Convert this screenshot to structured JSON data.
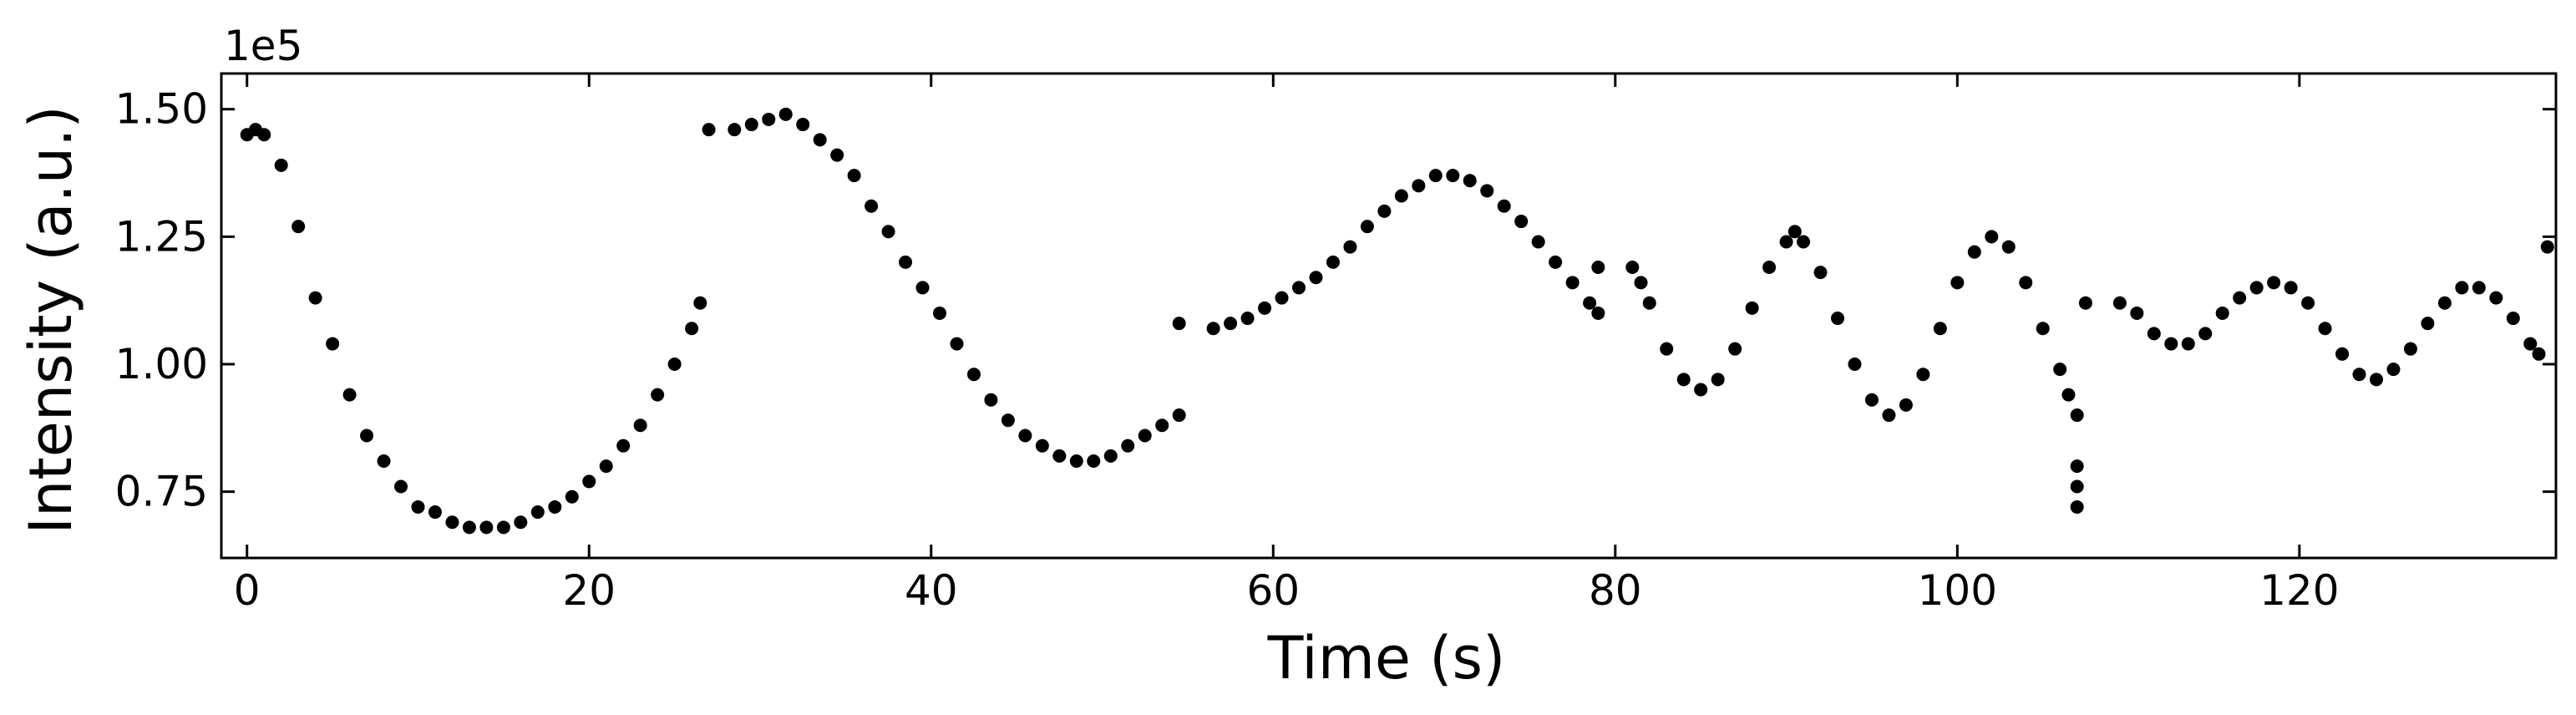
{
  "chart_data": {
    "type": "scatter",
    "title": "",
    "xlabel": "Time (s)",
    "ylabel": "Intensity (a.u.)",
    "y_offset_label": "1e5",
    "xlim": [
      -1.5,
      135
    ],
    "ylim": [
      0.62,
      1.57
    ],
    "x_ticks": [
      0,
      20,
      40,
      60,
      80,
      100,
      120
    ],
    "x_tick_labels": [
      "0",
      "20",
      "40",
      "60",
      "80",
      "100",
      "120"
    ],
    "y_ticks": [
      0.75,
      1.0,
      1.25,
      1.5
    ],
    "y_tick_labels": [
      "0.75",
      "1.00",
      "1.25",
      "1.50"
    ],
    "tick_direction": "in",
    "grid": false,
    "legend": "none",
    "marker_color": "#000000",
    "series": [
      {
        "values": [
          [
            0.0,
            1.45
          ],
          [
            0.5,
            1.46
          ],
          [
            1.0,
            1.45
          ],
          [
            2.0,
            1.39
          ],
          [
            3.0,
            1.27
          ],
          [
            4.0,
            1.13
          ],
          [
            5.0,
            1.04
          ],
          [
            6.0,
            0.94
          ],
          [
            7.0,
            0.86
          ],
          [
            8.0,
            0.81
          ],
          [
            9.0,
            0.76
          ],
          [
            10.0,
            0.72
          ],
          [
            11.0,
            0.71
          ],
          [
            12.0,
            0.69
          ],
          [
            13.0,
            0.68
          ],
          [
            14.0,
            0.68
          ],
          [
            15.0,
            0.68
          ],
          [
            16.0,
            0.69
          ],
          [
            17.0,
            0.71
          ],
          [
            18.0,
            0.72
          ],
          [
            19.0,
            0.74
          ],
          [
            20.0,
            0.77
          ],
          [
            21.0,
            0.8
          ],
          [
            22.0,
            0.84
          ],
          [
            23.0,
            0.88
          ],
          [
            24.0,
            0.94
          ],
          [
            25.0,
            1.0
          ],
          [
            26.0,
            1.07
          ],
          [
            26.5,
            1.12
          ],
          [
            27.0,
            1.46
          ],
          [
            28.5,
            1.46
          ],
          [
            29.5,
            1.47
          ],
          [
            30.5,
            1.48
          ],
          [
            31.5,
            1.49
          ],
          [
            32.5,
            1.47
          ],
          [
            33.5,
            1.44
          ],
          [
            34.5,
            1.41
          ],
          [
            35.5,
            1.37
          ],
          [
            36.5,
            1.31
          ],
          [
            37.5,
            1.26
          ],
          [
            38.5,
            1.2
          ],
          [
            39.5,
            1.15
          ],
          [
            40.5,
            1.1
          ],
          [
            41.5,
            1.04
          ],
          [
            42.5,
            0.98
          ],
          [
            43.5,
            0.93
          ],
          [
            44.5,
            0.89
          ],
          [
            45.5,
            0.86
          ],
          [
            46.5,
            0.84
          ],
          [
            47.5,
            0.82
          ],
          [
            48.5,
            0.81
          ],
          [
            49.5,
            0.81
          ],
          [
            50.5,
            0.82
          ],
          [
            51.5,
            0.84
          ],
          [
            52.5,
            0.86
          ],
          [
            53.5,
            0.88
          ],
          [
            54.5,
            0.9
          ],
          [
            54.5,
            1.08
          ],
          [
            56.5,
            1.07
          ],
          [
            57.5,
            1.08
          ],
          [
            58.5,
            1.09
          ],
          [
            59.5,
            1.11
          ],
          [
            60.5,
            1.13
          ],
          [
            61.5,
            1.15
          ],
          [
            62.5,
            1.17
          ],
          [
            63.5,
            1.2
          ],
          [
            64.5,
            1.23
          ],
          [
            65.5,
            1.27
          ],
          [
            66.5,
            1.3
          ],
          [
            67.5,
            1.33
          ],
          [
            68.5,
            1.35
          ],
          [
            69.5,
            1.37
          ],
          [
            70.5,
            1.37
          ],
          [
            71.5,
            1.36
          ],
          [
            72.5,
            1.34
          ],
          [
            73.5,
            1.31
          ],
          [
            74.5,
            1.28
          ],
          [
            75.5,
            1.24
          ],
          [
            76.5,
            1.2
          ],
          [
            77.5,
            1.16
          ],
          [
            78.5,
            1.12
          ],
          [
            79.0,
            1.1
          ],
          [
            79.0,
            1.19
          ],
          [
            81.0,
            1.19
          ],
          [
            81.5,
            1.16
          ],
          [
            82.0,
            1.12
          ],
          [
            83.0,
            1.03
          ],
          [
            84.0,
            0.97
          ],
          [
            85.0,
            0.95
          ],
          [
            86.0,
            0.97
          ],
          [
            87.0,
            1.03
          ],
          [
            88.0,
            1.11
          ],
          [
            89.0,
            1.19
          ],
          [
            90.0,
            1.24
          ],
          [
            90.5,
            1.26
          ],
          [
            91.0,
            1.24
          ],
          [
            92.0,
            1.18
          ],
          [
            93.0,
            1.09
          ],
          [
            94.0,
            1.0
          ],
          [
            95.0,
            0.93
          ],
          [
            96.0,
            0.9
          ],
          [
            97.0,
            0.92
          ],
          [
            98.0,
            0.98
          ],
          [
            99.0,
            1.07
          ],
          [
            100.0,
            1.16
          ],
          [
            101.0,
            1.22
          ],
          [
            102.0,
            1.25
          ],
          [
            103.0,
            1.23
          ],
          [
            104.0,
            1.16
          ],
          [
            105.0,
            1.07
          ],
          [
            106.0,
            0.99
          ],
          [
            106.5,
            0.94
          ],
          [
            107.0,
            0.9
          ],
          [
            107.0,
            0.8
          ],
          [
            107.0,
            0.76
          ],
          [
            107.0,
            0.72
          ],
          [
            107.5,
            1.12
          ],
          [
            109.5,
            1.12
          ],
          [
            110.5,
            1.1
          ],
          [
            111.5,
            1.06
          ],
          [
            112.5,
            1.04
          ],
          [
            113.5,
            1.04
          ],
          [
            114.5,
            1.06
          ],
          [
            115.5,
            1.1
          ],
          [
            116.5,
            1.13
          ],
          [
            117.5,
            1.15
          ],
          [
            118.5,
            1.16
          ],
          [
            119.5,
            1.15
          ],
          [
            120.5,
            1.12
          ],
          [
            121.5,
            1.07
          ],
          [
            122.5,
            1.02
          ],
          [
            123.5,
            0.98
          ],
          [
            124.5,
            0.97
          ],
          [
            125.5,
            0.99
          ],
          [
            126.5,
            1.03
          ],
          [
            127.5,
            1.08
          ],
          [
            128.5,
            1.12
          ],
          [
            129.5,
            1.15
          ],
          [
            130.5,
            1.15
          ],
          [
            131.5,
            1.13
          ],
          [
            132.5,
            1.09
          ],
          [
            133.5,
            1.04
          ],
          [
            134.0,
            1.02
          ],
          [
            134.5,
            1.23
          ]
        ]
      }
    ]
  }
}
